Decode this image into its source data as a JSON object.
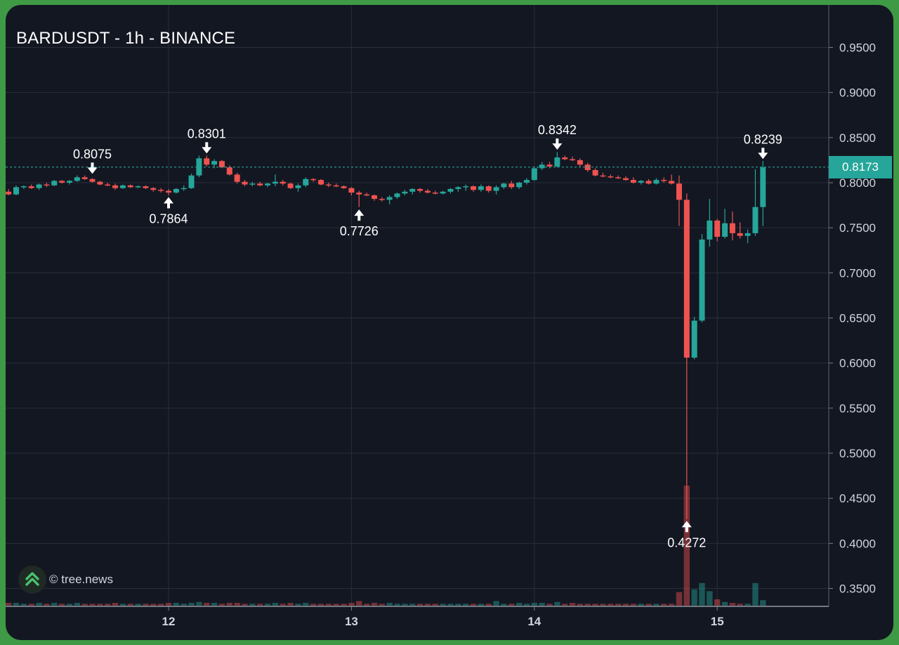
{
  "chart_data": {
    "type": "candlestick",
    "title": "BARDUSDT - 1h - BINANCE",
    "watermark": "© tree.news",
    "y_ticks": [
      "0.9500",
      "0.9000",
      "0.8500",
      "0.8000",
      "0.7500",
      "0.7000",
      "0.6500",
      "0.6000",
      "0.5500",
      "0.5000",
      "0.4500",
      "0.4000",
      "0.3500"
    ],
    "y_tick_values": [
      0.95,
      0.9,
      0.85,
      0.8,
      0.75,
      0.7,
      0.65,
      0.6,
      0.55,
      0.5,
      0.45,
      0.4,
      0.35
    ],
    "x_ticks": [
      {
        "label": "12",
        "t": 0
      },
      {
        "label": "13",
        "t": 24
      },
      {
        "label": "14",
        "t": 48
      },
      {
        "label": "15",
        "t": 72
      }
    ],
    "ylim": [
      0.331,
      0.973
    ],
    "current_price": "0.8173",
    "current_price_value": 0.8173,
    "colors": {
      "up": "#26a69a",
      "down": "#ef5350",
      "background": "#131722",
      "grid": "#2a2e39",
      "text": "#d1d4dc"
    },
    "candles": [
      [
        -21,
        0.79,
        0.793,
        0.786,
        0.787
      ],
      [
        -20,
        0.787,
        0.797,
        0.786,
        0.795
      ],
      [
        -19,
        0.795,
        0.797,
        0.793,
        0.796
      ],
      [
        -18,
        0.796,
        0.798,
        0.793,
        0.794
      ],
      [
        -17,
        0.794,
        0.799,
        0.792,
        0.798
      ],
      [
        -16,
        0.798,
        0.8,
        0.795,
        0.797
      ],
      [
        -15,
        0.797,
        0.803,
        0.796,
        0.802
      ],
      [
        -14,
        0.802,
        0.803,
        0.799,
        0.8
      ],
      [
        -13,
        0.8,
        0.803,
        0.798,
        0.802
      ],
      [
        -12,
        0.802,
        0.808,
        0.801,
        0.806
      ],
      [
        -11,
        0.806,
        0.808,
        0.803,
        0.804
      ],
      [
        -10,
        0.804,
        0.805,
        0.8,
        0.801
      ],
      [
        -9,
        0.801,
        0.802,
        0.797,
        0.798
      ],
      [
        -8,
        0.798,
        0.8,
        0.796,
        0.797
      ],
      [
        -7,
        0.797,
        0.799,
        0.792,
        0.794
      ],
      [
        -6,
        0.794,
        0.798,
        0.793,
        0.797
      ],
      [
        -5,
        0.797,
        0.798,
        0.794,
        0.795
      ],
      [
        -4,
        0.795,
        0.797,
        0.794,
        0.796
      ],
      [
        -3,
        0.796,
        0.797,
        0.793,
        0.794
      ],
      [
        -2,
        0.794,
        0.795,
        0.79,
        0.792
      ],
      [
        -1,
        0.792,
        0.794,
        0.789,
        0.791
      ],
      [
        0,
        0.791,
        0.793,
        0.786,
        0.789
      ],
      [
        1,
        0.789,
        0.794,
        0.788,
        0.793
      ],
      [
        2,
        0.793,
        0.797,
        0.791,
        0.794
      ],
      [
        3,
        0.794,
        0.81,
        0.793,
        0.808
      ],
      [
        4,
        0.808,
        0.83,
        0.806,
        0.827
      ],
      [
        5,
        0.827,
        0.83,
        0.818,
        0.82
      ],
      [
        6,
        0.82,
        0.826,
        0.816,
        0.824
      ],
      [
        7,
        0.824,
        0.825,
        0.816,
        0.817
      ],
      [
        8,
        0.817,
        0.819,
        0.808,
        0.809
      ],
      [
        9,
        0.809,
        0.811,
        0.799,
        0.801
      ],
      [
        10,
        0.801,
        0.803,
        0.796,
        0.798
      ],
      [
        11,
        0.798,
        0.801,
        0.796,
        0.799
      ],
      [
        12,
        0.799,
        0.801,
        0.796,
        0.797
      ],
      [
        13,
        0.797,
        0.8,
        0.795,
        0.799
      ],
      [
        14,
        0.799,
        0.809,
        0.796,
        0.801
      ],
      [
        15,
        0.801,
        0.803,
        0.797,
        0.799
      ],
      [
        16,
        0.799,
        0.8,
        0.793,
        0.794
      ],
      [
        17,
        0.794,
        0.799,
        0.79,
        0.797
      ],
      [
        18,
        0.797,
        0.806,
        0.795,
        0.804
      ],
      [
        19,
        0.804,
        0.805,
        0.801,
        0.803
      ],
      [
        20,
        0.803,
        0.804,
        0.797,
        0.798
      ],
      [
        21,
        0.798,
        0.8,
        0.795,
        0.797
      ],
      [
        22,
        0.797,
        0.799,
        0.795,
        0.796
      ],
      [
        23,
        0.796,
        0.797,
        0.793,
        0.794
      ],
      [
        24,
        0.794,
        0.795,
        0.786,
        0.789
      ],
      [
        25,
        0.789,
        0.791,
        0.773,
        0.787
      ],
      [
        26,
        0.787,
        0.789,
        0.785,
        0.786
      ],
      [
        27,
        0.786,
        0.787,
        0.78,
        0.782
      ],
      [
        28,
        0.782,
        0.784,
        0.779,
        0.781
      ],
      [
        29,
        0.781,
        0.786,
        0.776,
        0.784
      ],
      [
        30,
        0.784,
        0.789,
        0.782,
        0.788
      ],
      [
        31,
        0.788,
        0.792,
        0.786,
        0.79
      ],
      [
        32,
        0.79,
        0.794,
        0.787,
        0.793
      ],
      [
        33,
        0.793,
        0.794,
        0.789,
        0.791
      ],
      [
        34,
        0.791,
        0.793,
        0.788,
        0.789
      ],
      [
        35,
        0.789,
        0.791,
        0.787,
        0.788
      ],
      [
        36,
        0.788,
        0.791,
        0.787,
        0.79
      ],
      [
        37,
        0.79,
        0.794,
        0.788,
        0.793
      ],
      [
        38,
        0.793,
        0.796,
        0.79,
        0.795
      ],
      [
        39,
        0.795,
        0.798,
        0.791,
        0.796
      ],
      [
        40,
        0.796,
        0.797,
        0.79,
        0.792
      ],
      [
        41,
        0.792,
        0.798,
        0.79,
        0.796
      ],
      [
        42,
        0.796,
        0.797,
        0.789,
        0.791
      ],
      [
        43,
        0.791,
        0.797,
        0.787,
        0.795
      ],
      [
        44,
        0.795,
        0.8,
        0.793,
        0.799
      ],
      [
        45,
        0.799,
        0.802,
        0.793,
        0.795
      ],
      [
        46,
        0.795,
        0.801,
        0.793,
        0.8
      ],
      [
        47,
        0.8,
        0.805,
        0.798,
        0.803
      ],
      [
        48,
        0.803,
        0.818,
        0.802,
        0.816
      ],
      [
        49,
        0.816,
        0.823,
        0.814,
        0.82
      ],
      [
        50,
        0.82,
        0.823,
        0.816,
        0.818
      ],
      [
        51,
        0.818,
        0.834,
        0.817,
        0.828
      ],
      [
        52,
        0.828,
        0.83,
        0.825,
        0.826
      ],
      [
        53,
        0.826,
        0.829,
        0.824,
        0.825
      ],
      [
        54,
        0.825,
        0.827,
        0.818,
        0.82
      ],
      [
        55,
        0.82,
        0.822,
        0.812,
        0.814
      ],
      [
        56,
        0.814,
        0.816,
        0.807,
        0.808
      ],
      [
        57,
        0.808,
        0.811,
        0.806,
        0.807
      ],
      [
        58,
        0.807,
        0.809,
        0.805,
        0.806
      ],
      [
        59,
        0.806,
        0.808,
        0.804,
        0.805
      ],
      [
        60,
        0.805,
        0.807,
        0.802,
        0.803
      ],
      [
        61,
        0.803,
        0.806,
        0.799,
        0.8
      ],
      [
        62,
        0.8,
        0.803,
        0.798,
        0.802
      ],
      [
        63,
        0.802,
        0.804,
        0.798,
        0.799
      ],
      [
        64,
        0.799,
        0.805,
        0.798,
        0.803
      ],
      [
        65,
        0.803,
        0.806,
        0.8,
        0.802
      ],
      [
        66,
        0.802,
        0.809,
        0.798,
        0.799
      ],
      [
        67,
        0.799,
        0.808,
        0.752,
        0.781
      ],
      [
        68,
        0.781,
        0.788,
        0.427,
        0.606
      ],
      [
        69,
        0.606,
        0.651,
        0.604,
        0.647
      ],
      [
        70,
        0.647,
        0.743,
        0.645,
        0.737
      ],
      [
        71,
        0.737,
        0.782,
        0.729,
        0.758
      ],
      [
        72,
        0.758,
        0.76,
        0.735,
        0.74
      ],
      [
        73,
        0.74,
        0.771,
        0.738,
        0.755
      ],
      [
        74,
        0.755,
        0.768,
        0.736,
        0.744
      ],
      [
        75,
        0.744,
        0.756,
        0.738,
        0.741
      ],
      [
        76,
        0.741,
        0.748,
        0.733,
        0.744
      ],
      [
        77,
        0.744,
        0.815,
        0.741,
        0.773
      ],
      [
        78,
        0.773,
        0.824,
        0.752,
        0.817
      ]
    ],
    "volumes": [
      [
        -21,
        0.003
      ],
      [
        -20,
        0.003
      ],
      [
        -19,
        0.002
      ],
      [
        -18,
        0.002
      ],
      [
        -17,
        0.003
      ],
      [
        -16,
        0.002
      ],
      [
        -15,
        0.003
      ],
      [
        -14,
        0.002
      ],
      [
        -13,
        0.002
      ],
      [
        -12,
        0.003
      ],
      [
        -11,
        0.002
      ],
      [
        -10,
        0.002
      ],
      [
        -9,
        0.002
      ],
      [
        -8,
        0.002
      ],
      [
        -7,
        0.003
      ],
      [
        -6,
        0.002
      ],
      [
        -5,
        0.002
      ],
      [
        -4,
        0.002
      ],
      [
        -3,
        0.002
      ],
      [
        -2,
        0.002
      ],
      [
        -1,
        0.002
      ],
      [
        0,
        0.003
      ],
      [
        1,
        0.003
      ],
      [
        2,
        0.002
      ],
      [
        3,
        0.003
      ],
      [
        4,
        0.004
      ],
      [
        5,
        0.003
      ],
      [
        6,
        0.003
      ],
      [
        7,
        0.002
      ],
      [
        8,
        0.003
      ],
      [
        9,
        0.003
      ],
      [
        10,
        0.002
      ],
      [
        11,
        0.002
      ],
      [
        12,
        0.002
      ],
      [
        13,
        0.002
      ],
      [
        14,
        0.003
      ],
      [
        15,
        0.002
      ],
      [
        16,
        0.003
      ],
      [
        17,
        0.002
      ],
      [
        18,
        0.003
      ],
      [
        19,
        0.002
      ],
      [
        20,
        0.002
      ],
      [
        21,
        0.002
      ],
      [
        22,
        0.002
      ],
      [
        23,
        0.002
      ],
      [
        24,
        0.003
      ],
      [
        25,
        0.005
      ],
      [
        26,
        0.002
      ],
      [
        27,
        0.003
      ],
      [
        28,
        0.002
      ],
      [
        29,
        0.003
      ],
      [
        30,
        0.002
      ],
      [
        31,
        0.002
      ],
      [
        32,
        0.002
      ],
      [
        33,
        0.002
      ],
      [
        34,
        0.002
      ],
      [
        35,
        0.002
      ],
      [
        36,
        0.002
      ],
      [
        37,
        0.002
      ],
      [
        38,
        0.002
      ],
      [
        39,
        0.002
      ],
      [
        40,
        0.002
      ],
      [
        41,
        0.002
      ],
      [
        42,
        0.002
      ],
      [
        43,
        0.005
      ],
      [
        44,
        0.002
      ],
      [
        45,
        0.002
      ],
      [
        46,
        0.003
      ],
      [
        47,
        0.002
      ],
      [
        48,
        0.003
      ],
      [
        49,
        0.003
      ],
      [
        50,
        0.002
      ],
      [
        51,
        0.004
      ],
      [
        52,
        0.002
      ],
      [
        53,
        0.003
      ],
      [
        54,
        0.002
      ],
      [
        55,
        0.002
      ],
      [
        56,
        0.002
      ],
      [
        57,
        0.002
      ],
      [
        58,
        0.002
      ],
      [
        59,
        0.002
      ],
      [
        60,
        0.002
      ],
      [
        61,
        0.002
      ],
      [
        62,
        0.002
      ],
      [
        63,
        0.002
      ],
      [
        64,
        0.002
      ],
      [
        65,
        0.002
      ],
      [
        66,
        0.002
      ],
      [
        67,
        0.015
      ],
      [
        68,
        0.133
      ],
      [
        69,
        0.018
      ],
      [
        70,
        0.025
      ],
      [
        71,
        0.016
      ],
      [
        72,
        0.007
      ],
      [
        73,
        0.004
      ],
      [
        74,
        0.003
      ],
      [
        75,
        0.002
      ],
      [
        76,
        0.002
      ],
      [
        77,
        0.025
      ],
      [
        78,
        0.006
      ]
    ],
    "annotations": [
      {
        "label": "0.8075",
        "t": -10,
        "value": 0.8075,
        "position": "above"
      },
      {
        "label": "0.8301",
        "t": 5,
        "value": 0.8301,
        "position": "above"
      },
      {
        "label": "0.8342",
        "t": 51,
        "value": 0.8342,
        "position": "above"
      },
      {
        "label": "0.8239",
        "t": 78,
        "value": 0.8239,
        "position": "above"
      },
      {
        "label": "0.7864",
        "t": 0,
        "value": 0.7864,
        "position": "below"
      },
      {
        "label": "0.7726",
        "t": 25,
        "value": 0.7726,
        "position": "below"
      },
      {
        "label": "0.4272",
        "t": 68,
        "value": 0.4272,
        "position": "below"
      }
    ]
  }
}
